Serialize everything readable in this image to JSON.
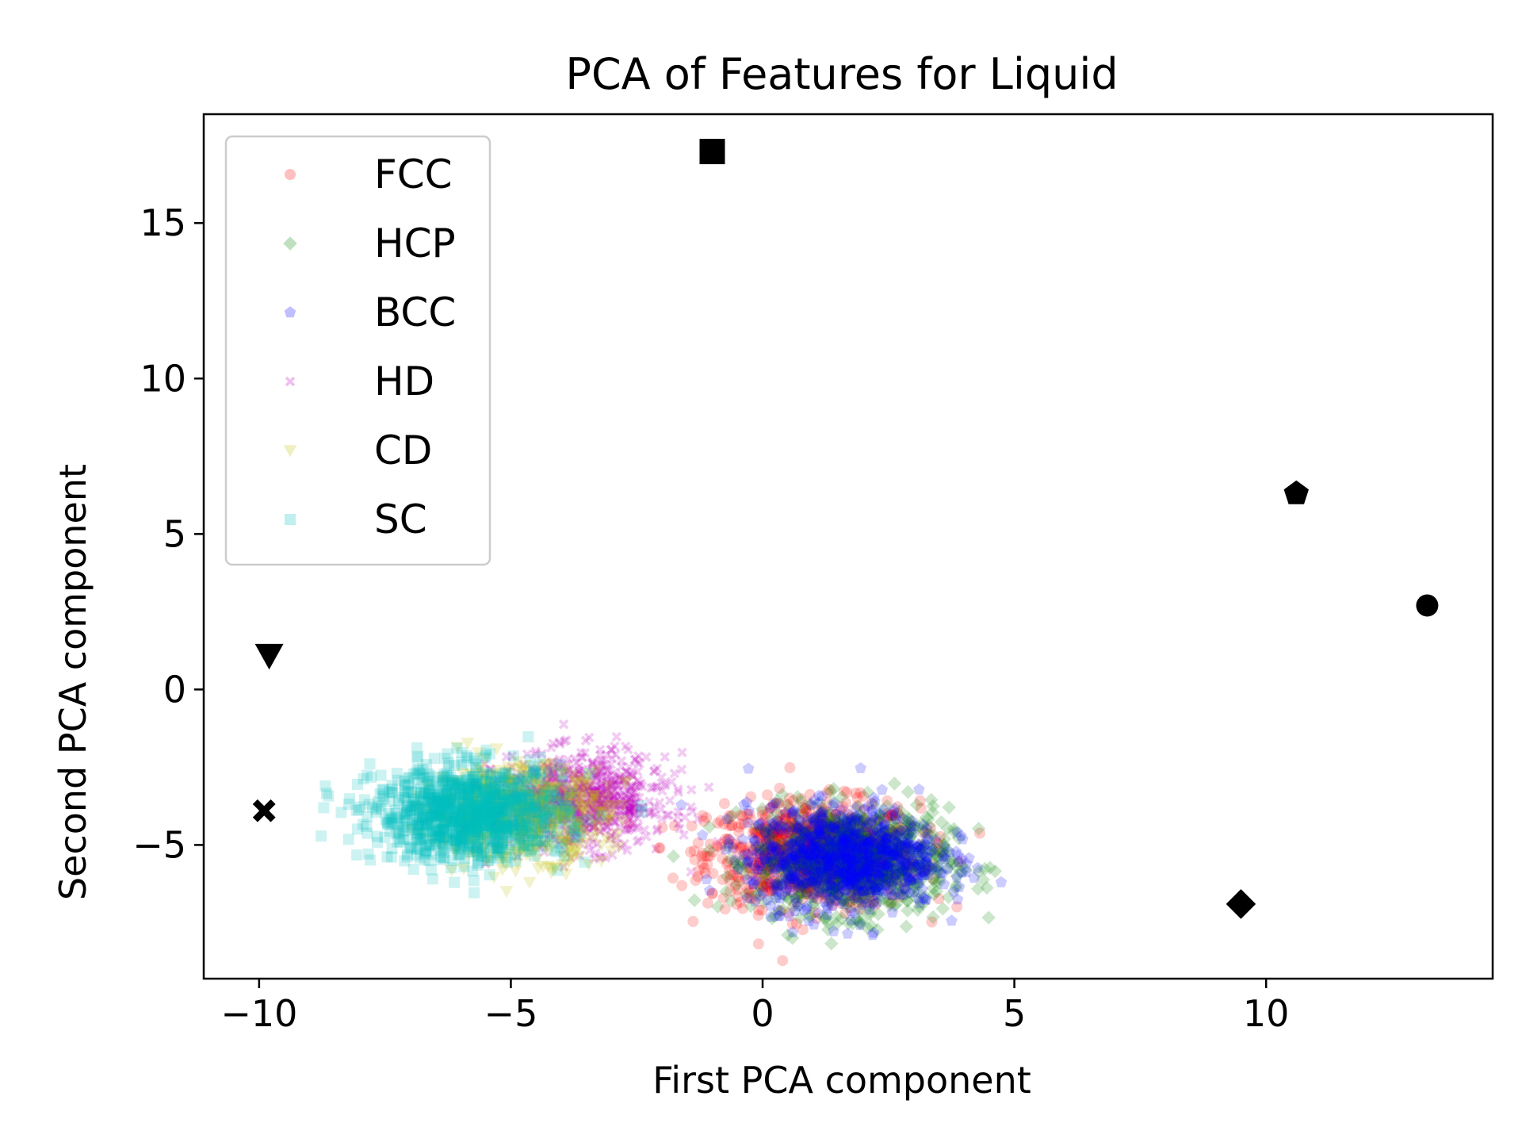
{
  "chart_data": {
    "type": "scatter",
    "title": "PCA of Features for Liquid",
    "xlabel": "First PCA component",
    "ylabel": "Second PCA component",
    "xlim": [
      -11.1,
      14.5
    ],
    "ylim": [
      -9.3,
      18.5
    ],
    "xticks": [
      -10,
      -5,
      0,
      5,
      10
    ],
    "xtick_labels": [
      "−10",
      "−5",
      "0",
      "5",
      "10"
    ],
    "yticks": [
      -5,
      0,
      5,
      10,
      15
    ],
    "ytick_labels": [
      "−5",
      "0",
      "5",
      "10",
      "15"
    ],
    "grid": false,
    "legend_position": "upper-left",
    "series": [
      {
        "name": "FCC",
        "marker": "circle",
        "color": "#ff0000",
        "alpha": 0.2,
        "cluster": {
          "center": [
            1.0,
            -5.3
          ],
          "spread": [
            1.05,
            0.85
          ],
          "n": 900
        }
      },
      {
        "name": "HCP",
        "marker": "diamond",
        "color": "#008000",
        "alpha": 0.2,
        "cluster": {
          "center": [
            1.8,
            -5.5
          ],
          "spread": [
            0.95,
            0.85
          ],
          "n": 900
        }
      },
      {
        "name": "BCC",
        "marker": "pentagon",
        "color": "#0000ff",
        "alpha": 0.2,
        "cluster": {
          "center": [
            1.6,
            -5.4
          ],
          "spread": [
            0.95,
            0.8
          ],
          "n": 1000
        }
      },
      {
        "name": "HD",
        "marker": "x",
        "color": "#c000c0",
        "alpha": 0.2,
        "cluster": {
          "center": [
            -3.6,
            -3.6
          ],
          "spread": [
            0.85,
            0.75
          ],
          "n": 800
        }
      },
      {
        "name": "CD",
        "marker": "triangle-down",
        "color": "#bfbf00",
        "alpha": 0.2,
        "cluster": {
          "center": [
            -4.8,
            -4.0
          ],
          "spread": [
            0.85,
            0.75
          ],
          "n": 700
        }
      },
      {
        "name": "SC",
        "marker": "square",
        "color": "#00bfbf",
        "alpha": 0.2,
        "cluster": {
          "center": [
            -5.8,
            -4.0
          ],
          "spread": [
            0.95,
            0.75
          ],
          "n": 1100
        }
      }
    ],
    "reference_points": [
      {
        "marker": "square",
        "x": -1.0,
        "y": 17.3
      },
      {
        "marker": "pentagon",
        "x": 10.6,
        "y": 6.3
      },
      {
        "marker": "circle",
        "x": 13.2,
        "y": 2.7
      },
      {
        "marker": "triangle-down",
        "x": -9.8,
        "y": 1.1
      },
      {
        "marker": "x",
        "x": -9.9,
        "y": -3.9
      },
      {
        "marker": "diamond",
        "x": 9.5,
        "y": -6.9
      }
    ]
  }
}
